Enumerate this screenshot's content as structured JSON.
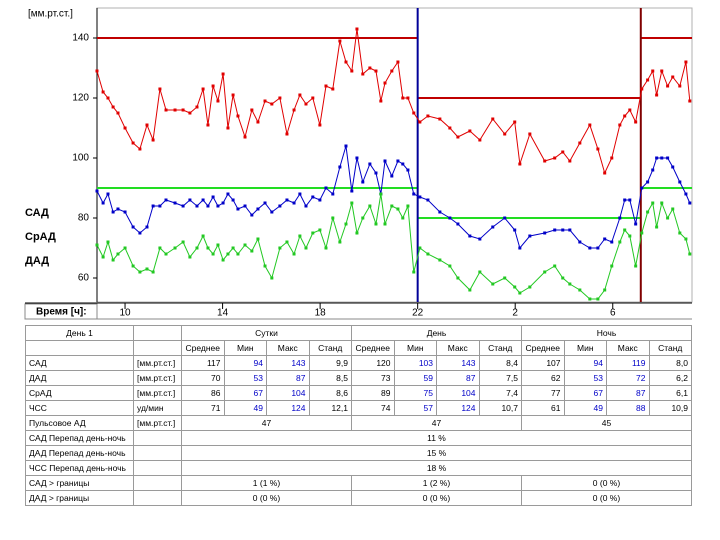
{
  "chart_data": {
    "type": "line",
    "ylabel": "[мм.рт.ст.]",
    "xlabel": "Время [ч]:",
    "x": [
      8.85,
      9.1,
      9.3,
      9.51,
      9.71,
      10.0,
      10.33,
      10.61,
      10.9,
      11.15,
      11.43,
      11.68,
      12.05,
      12.38,
      12.66,
      12.95,
      13.2,
      13.4,
      13.61,
      13.81,
      14.02,
      14.22,
      14.43,
      14.63,
      14.92,
      15.2,
      15.45,
      15.74,
      16.02,
      16.35,
      16.64,
      16.93,
      17.17,
      17.42,
      17.7,
      17.99,
      18.24,
      18.52,
      18.81,
      19.06,
      19.3,
      19.51,
      19.75,
      20.04,
      20.29,
      20.49,
      20.66,
      20.94,
      21.19,
      21.39,
      21.6,
      21.84,
      22.09,
      22.42,
      22.91,
      23.32,
      23.65,
      24.14,
      24.55,
      25.08,
      25.57,
      25.98,
      26.19,
      26.6,
      27.21,
      27.62,
      27.95,
      28.24,
      28.65,
      29.06,
      29.39,
      29.67,
      29.96,
      30.29,
      30.49,
      30.7,
      30.94,
      31.19,
      31.43,
      31.64,
      31.8,
      32.01,
      32.25,
      32.46,
      32.75,
      33.0,
      33.16
    ],
    "xlim": [
      8.85,
      33.25
    ],
    "xticks": [
      10,
      14,
      18,
      22,
      {
        "value": 26,
        "label": "2"
      },
      {
        "value": 30,
        "label": "6"
      }
    ],
    "ylim": [
      52,
      150
    ],
    "yticks": [
      60,
      80,
      100,
      120,
      140
    ],
    "series": [
      {
        "name": "САД",
        "color": "#e00000",
        "values": [
          129,
          122,
          120,
          117,
          115,
          110,
          105,
          103,
          111,
          106,
          123,
          116,
          116,
          116,
          115,
          117,
          123,
          111,
          124,
          119,
          128,
          110,
          121,
          114,
          107,
          116,
          112,
          119,
          118,
          120,
          108,
          116,
          121,
          118,
          120,
          111,
          124,
          123,
          139,
          132,
          129,
          143,
          128,
          130,
          129,
          119,
          125,
          129,
          132,
          120,
          120,
          115,
          112,
          114,
          113,
          110,
          107,
          109,
          106,
          113,
          108,
          112,
          98,
          108,
          99,
          100,
          102,
          99,
          105,
          111,
          103,
          95,
          100,
          111,
          114,
          116,
          112,
          123,
          126,
          129,
          121,
          129,
          124,
          127,
          124,
          132,
          119
        ]
      },
      {
        "name": "СрАД",
        "color": "#0000c8",
        "values": [
          89,
          85,
          88,
          82,
          83,
          82,
          77,
          75,
          77,
          84,
          84,
          86,
          85,
          84,
          86,
          84,
          86,
          84,
          87,
          84,
          85,
          88,
          86,
          83,
          84,
          81,
          83,
          85,
          82,
          84,
          86,
          85,
          88,
          84,
          87,
          86,
          90,
          88,
          97,
          104,
          89,
          100,
          92,
          98,
          95,
          88,
          99,
          94,
          99,
          98,
          96,
          88,
          87,
          86,
          82,
          80,
          78,
          74,
          73,
          77,
          80,
          76,
          70,
          74,
          75,
          76,
          76,
          76,
          72,
          70,
          70,
          73,
          72,
          80,
          86,
          86,
          78,
          90,
          92,
          96,
          100,
          100,
          100,
          97,
          92,
          88,
          85
        ]
      },
      {
        "name": "ДАД",
        "color": "#22c822",
        "values": [
          71,
          67,
          72,
          66,
          68,
          70,
          64,
          62,
          63,
          62,
          70,
          68,
          70,
          72,
          67,
          70,
          74,
          70,
          68,
          71,
          66,
          68,
          70,
          68,
          71,
          69,
          73,
          64,
          60,
          70,
          72,
          68,
          74,
          70,
          75,
          76,
          70,
          80,
          72,
          78,
          85,
          75,
          80,
          84,
          78,
          88,
          78,
          84,
          83,
          80,
          84,
          62,
          70,
          68,
          66,
          64,
          60,
          56,
          62,
          58,
          60,
          57,
          55,
          57,
          62,
          64,
          60,
          58,
          56,
          53,
          53,
          56,
          64,
          72,
          76,
          74,
          64,
          75,
          82,
          85,
          77,
          85,
          80,
          83,
          75,
          73,
          68
        ]
      }
    ],
    "limits": [
      {
        "x": [
          8.85,
          22
        ],
        "value": 140,
        "color": "#c00000"
      },
      {
        "x": [
          22,
          31.15
        ],
        "value": 120,
        "color": "#c00000"
      },
      {
        "x": [
          31.15,
          33.25
        ],
        "value": 140,
        "color": "#c00000"
      },
      {
        "x": [
          8.85,
          22
        ],
        "value": 90,
        "color": "#22dd22"
      },
      {
        "x": [
          22,
          31.15
        ],
        "value": 80,
        "color": "#22dd22"
      },
      {
        "x": [
          31.15,
          33.25
        ],
        "value": 90,
        "color": "#22dd22"
      }
    ],
    "markers": [
      {
        "x": 22,
        "color": "#000099"
      },
      {
        "x": 31.15,
        "color": "#800000"
      }
    ]
  },
  "table": {
    "corner": "День 1",
    "groups": [
      "Сутки",
      "День",
      "Ночь"
    ],
    "stats": [
      "Среднее",
      "Мин",
      "Макс",
      "Станд"
    ],
    "rows": [
      {
        "label": "САД",
        "unit": "[мм.рт.ст.]",
        "cells": [
          "117",
          "94",
          "143",
          "9,9",
          "120",
          "103",
          "143",
          "8,4",
          "107",
          "94",
          "119",
          "8,0"
        ]
      },
      {
        "label": "ДАД",
        "unit": "[мм.рт.ст.]",
        "cells": [
          "70",
          "53",
          "87",
          "8,5",
          "73",
          "59",
          "87",
          "7,5",
          "62",
          "53",
          "72",
          "6,2"
        ]
      },
      {
        "label": "СрАД",
        "unit": "[мм.рт.ст.]",
        "cells": [
          "86",
          "67",
          "104",
          "8,6",
          "89",
          "75",
          "104",
          "7,4",
          "77",
          "67",
          "87",
          "6,1"
        ]
      },
      {
        "label": "ЧСС",
        "unit": "уд/мин",
        "cells": [
          "71",
          "49",
          "124",
          "12,1",
          "74",
          "57",
          "124",
          "10,7",
          "61",
          "49",
          "88",
          "10,9"
        ]
      },
      {
        "label": "Пульсовое АД",
        "unit": "[мм.рт.ст.]",
        "cells": [
          "47",
          "47",
          "45"
        ]
      },
      {
        "label": "САД Перепад день-ночь",
        "cells": [
          "11 %"
        ]
      },
      {
        "label": "ДАД Перепад день-ночь",
        "cells": [
          "15 %"
        ]
      },
      {
        "label": "ЧСС Перепад день-ночь",
        "cells": [
          "18 %"
        ]
      },
      {
        "label": "САД > границы",
        "cells": [
          "1 (1 %)",
          "1 (2 %)",
          "0 (0 %)"
        ]
      },
      {
        "label": "ДАД > границы",
        "cells": [
          "0 (0 %)",
          "0 (0 %)",
          "0 (0 %)"
        ]
      }
    ]
  }
}
